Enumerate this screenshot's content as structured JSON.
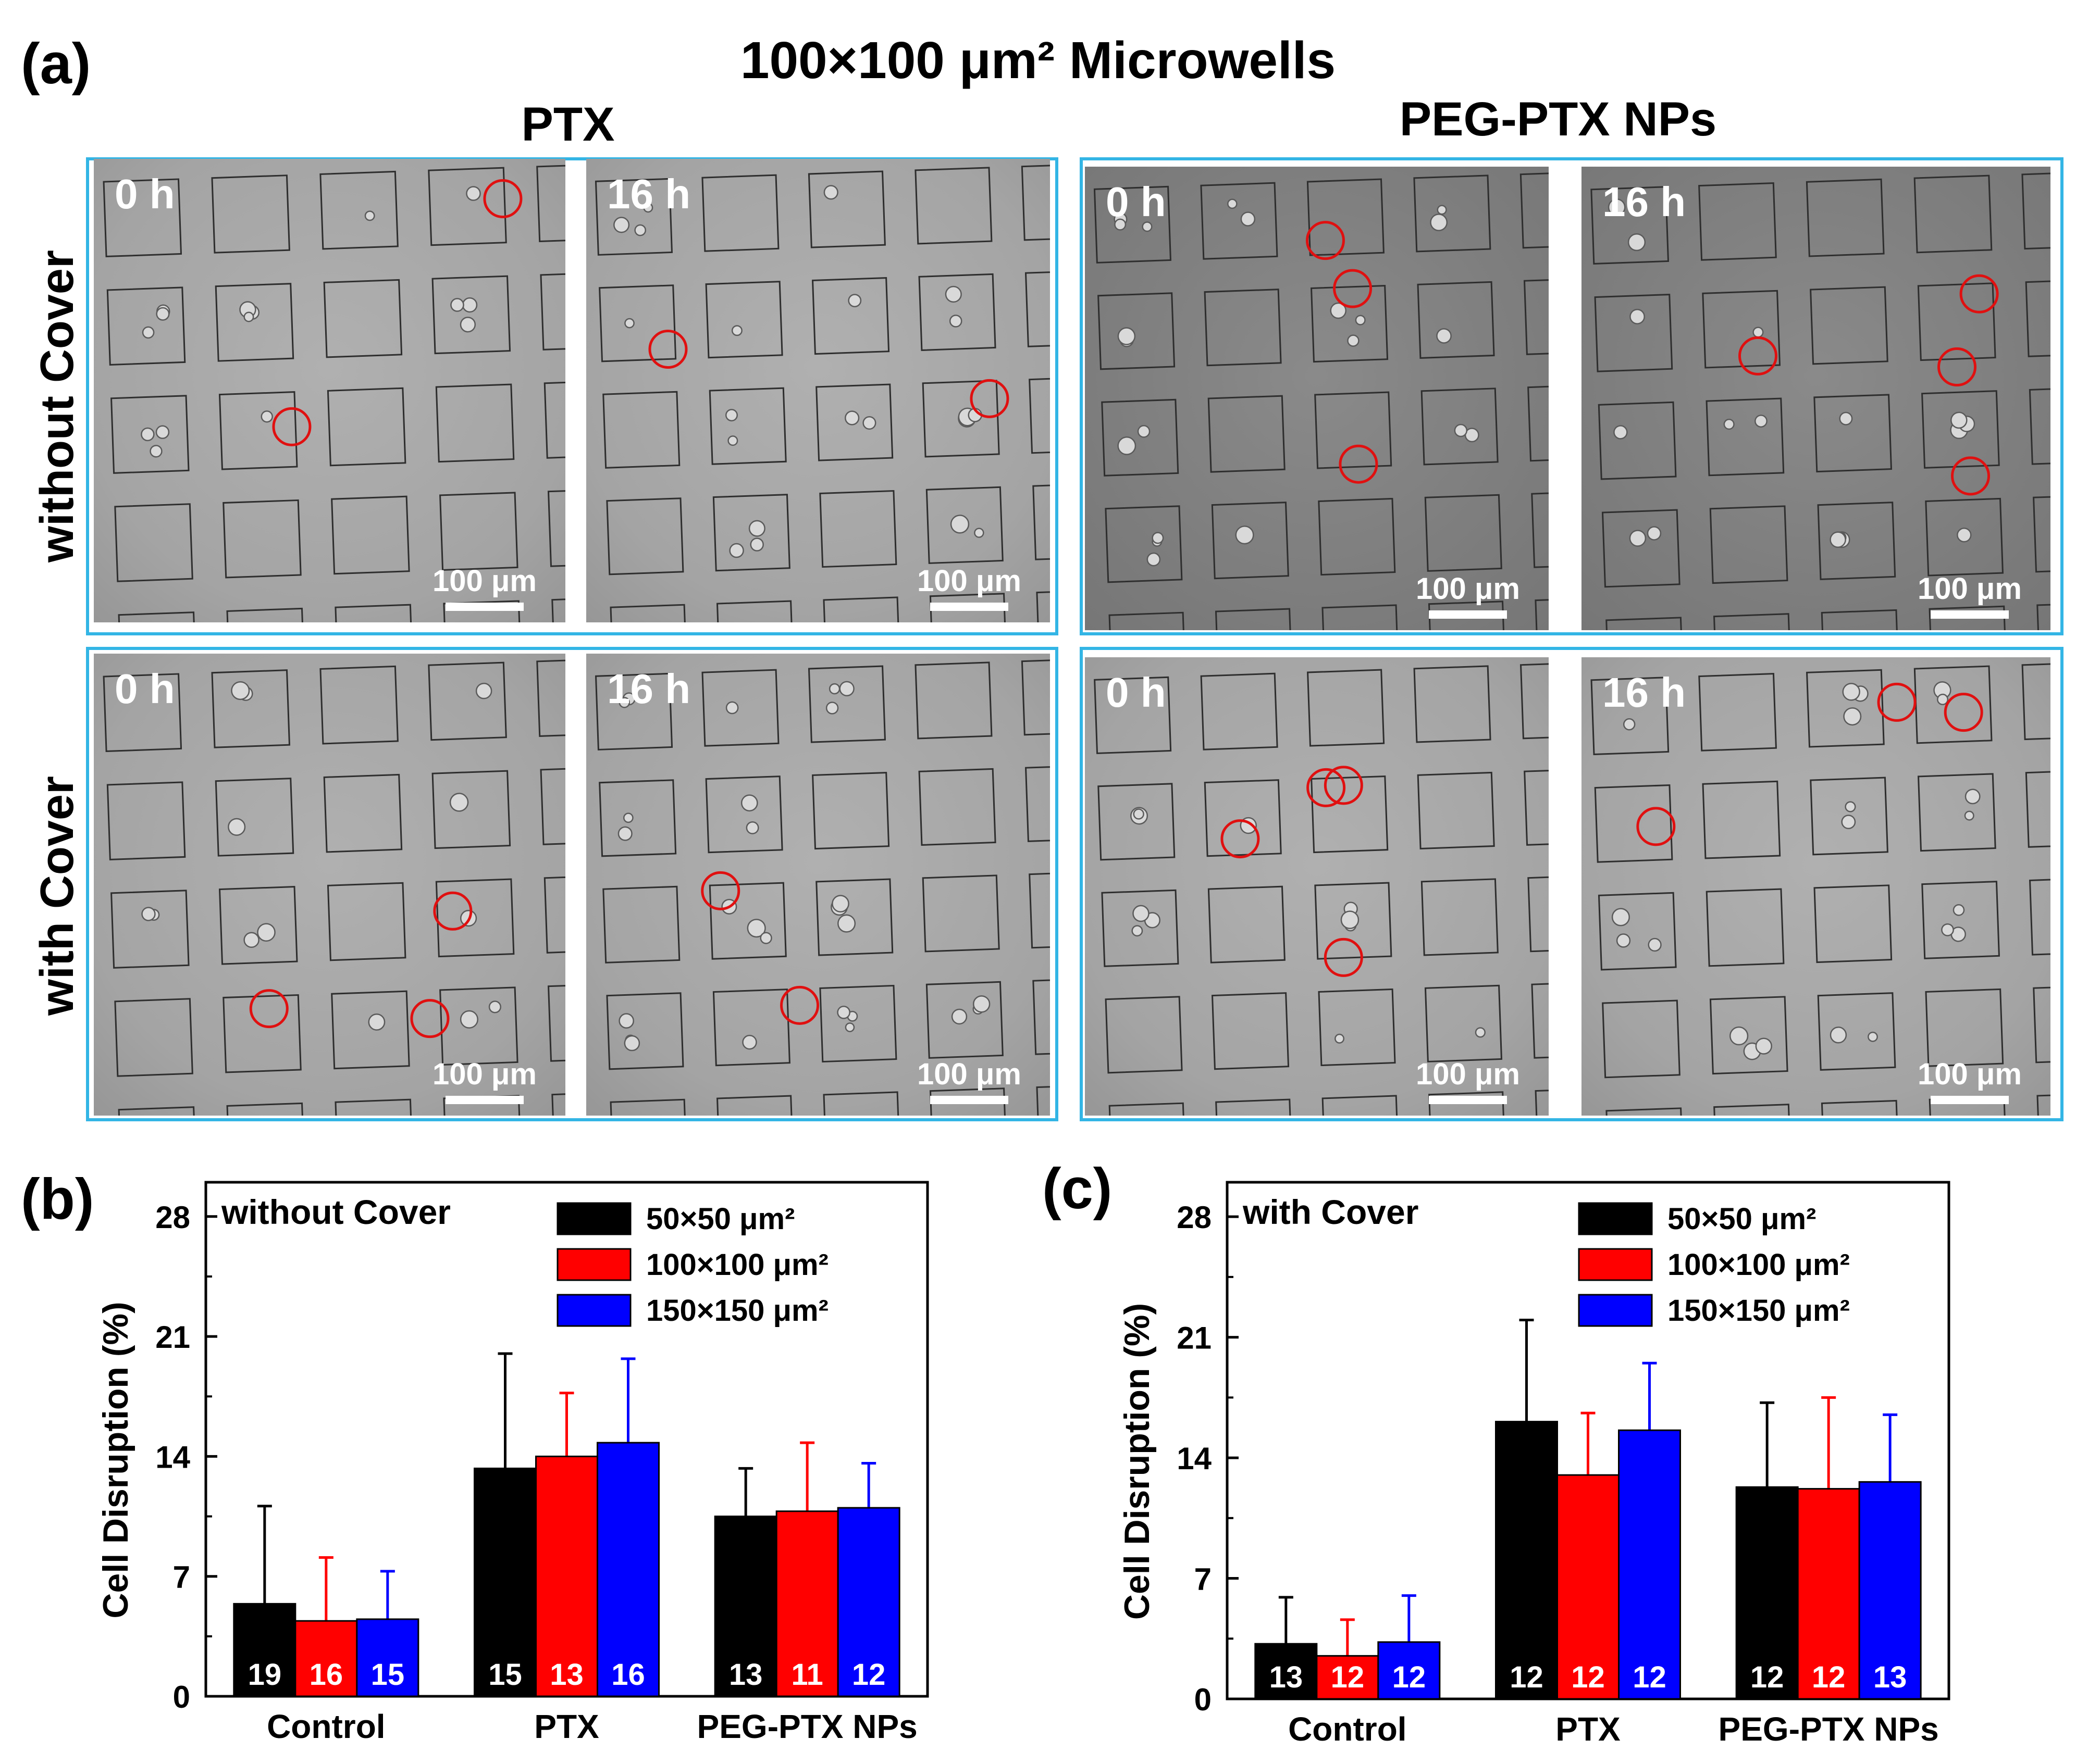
{
  "figure": {
    "panel_a_label": "(a)",
    "panel_b_label": "(b)",
    "panel_c_label": "(c)",
    "main_title": "100×100 μm² Microwells",
    "column_headers": [
      "PTX",
      "PEG-PTX NPs"
    ],
    "row_headers": [
      "without Cover",
      "with Cover"
    ],
    "time_labels": [
      "0 h",
      "16 h"
    ],
    "scale_bar_label": "100 μm"
  },
  "colors": {
    "micrograph_light": "#a9a9a9",
    "micrograph_dark": "#7e7e7e",
    "well_border": "#2e2e2e",
    "panel_frame": "#33b5e5",
    "marker_circle": "#e01010",
    "cell": "#d9d9d9",
    "series": [
      "#000000",
      "#ff0000",
      "#0000ff"
    ]
  },
  "chart_data": [
    {
      "type": "bar",
      "panel": "(b)",
      "title": "without Cover",
      "categories": [
        "Control",
        "PTX",
        "PEG-PTX NPs"
      ],
      "ylabel": "Cell Disruption (%)",
      "xlabel": "",
      "ylim": [
        0,
        30
      ],
      "yticks": [
        0,
        7,
        14,
        21,
        28
      ],
      "legend_position": "top-right",
      "series": [
        {
          "name": "50×50 μm²",
          "color": "#000000",
          "values": [
            5.4,
            13.3,
            10.5
          ],
          "errors": [
            5.7,
            6.7,
            2.8
          ],
          "n": [
            "19",
            "15",
            "13"
          ]
        },
        {
          "name": "100×100 μm²",
          "color": "#ff0000",
          "values": [
            4.4,
            14.0,
            10.8
          ],
          "errors": [
            3.7,
            3.7,
            4.0
          ],
          "n": [
            "16",
            "13",
            "11"
          ]
        },
        {
          "name": "150×150 μm²",
          "color": "#0000ff",
          "values": [
            4.5,
            14.8,
            11.0
          ],
          "errors": [
            2.8,
            4.9,
            2.6
          ],
          "n": [
            "15",
            "16",
            "12"
          ]
        }
      ]
    },
    {
      "type": "bar",
      "panel": "(c)",
      "title": "with Cover",
      "categories": [
        "Control",
        "PTX",
        "PEG-PTX NPs"
      ],
      "ylabel": "Cell Disruption (%)",
      "xlabel": "",
      "ylim": [
        0,
        30
      ],
      "yticks": [
        0,
        7,
        14,
        21,
        28
      ],
      "legend_position": "top-right",
      "series": [
        {
          "name": "50×50 μm²",
          "color": "#000000",
          "values": [
            3.2,
            16.1,
            12.3
          ],
          "errors": [
            2.7,
            5.9,
            4.9
          ],
          "n": [
            "13",
            "12",
            "12"
          ]
        },
        {
          "name": "100×100 μm²",
          "color": "#ff0000",
          "values": [
            2.5,
            13.0,
            12.2
          ],
          "errors": [
            2.1,
            3.6,
            5.3
          ],
          "n": [
            "12",
            "12",
            "12"
          ]
        },
        {
          "name": "150×150 μm²",
          "color": "#0000ff",
          "values": [
            3.3,
            15.6,
            12.6
          ],
          "errors": [
            2.7,
            3.9,
            3.9
          ],
          "n": [
            "12",
            "12",
            "13"
          ]
        }
      ]
    }
  ]
}
